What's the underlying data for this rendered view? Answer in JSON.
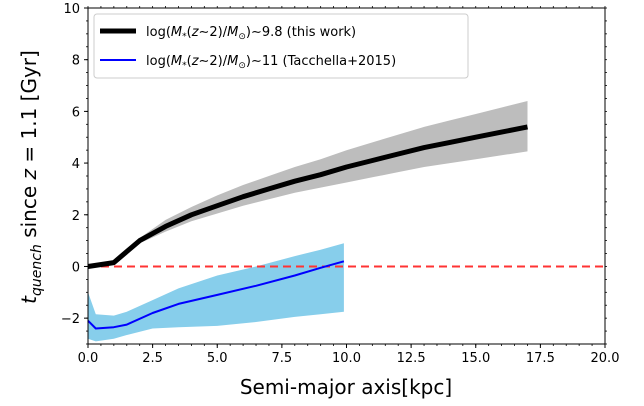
{
  "chart_data": {
    "type": "line",
    "xlabel": "Semi-major axis[kpc]",
    "ylabel": "t_quench since z = 1.1 [Gyr]",
    "ylabel_parts": {
      "t": "t",
      "sub": "quench",
      "rest": " since ",
      "z": "z",
      "tail": " = 1.1 [Gyr]"
    },
    "xlim": [
      0,
      20
    ],
    "ylim": [
      -3,
      10
    ],
    "xticks": [
      0,
      2.5,
      5,
      7.5,
      10,
      12.5,
      15,
      17.5,
      20
    ],
    "xtick_labels": [
      "0.0",
      "2.5",
      "5.0",
      "7.5",
      "10.0",
      "12.5",
      "15.0",
      "17.5",
      "20.0"
    ],
    "yticks": [
      -2,
      0,
      2,
      4,
      6,
      8,
      10
    ],
    "ytick_labels": [
      "−2",
      "0",
      "2",
      "4",
      "6",
      "8",
      "10"
    ],
    "legend_position": "top-left",
    "reference_line": {
      "y": 0,
      "color": "#ff3333",
      "style": "dashed"
    },
    "series": [
      {
        "name": "log(M*(z∼2)/M⊙)∼9.8 (this work)",
        "legend_parts": {
          "pre": "log(",
          "M": "M",
          "star": "*",
          "mid": "(",
          "z": "z",
          "post1": "∼2)/",
          "M2": "M",
          "sun": "⊙",
          "tail": ")∼9.8 (this work)"
        },
        "color": "#000000",
        "band_color": "#bdbdbd",
        "x": [
          0.0,
          1.0,
          2.0,
          3.0,
          4.0,
          5.0,
          6.0,
          7.0,
          8.0,
          9.0,
          10.0,
          11.0,
          12.0,
          13.0,
          14.0,
          15.0,
          16.0,
          17.0
        ],
        "y": [
          0.0,
          0.15,
          1.0,
          1.55,
          2.0,
          2.35,
          2.7,
          3.0,
          3.3,
          3.55,
          3.85,
          4.1,
          4.35,
          4.6,
          4.8,
          5.0,
          5.2,
          5.4
        ],
        "upper": [
          0.05,
          0.2,
          1.1,
          1.8,
          2.3,
          2.75,
          3.15,
          3.5,
          3.85,
          4.15,
          4.5,
          4.8,
          5.1,
          5.4,
          5.65,
          5.9,
          6.15,
          6.4
        ],
        "lower": [
          -0.05,
          0.1,
          0.9,
          1.35,
          1.75,
          2.05,
          2.35,
          2.6,
          2.85,
          3.05,
          3.25,
          3.45,
          3.65,
          3.85,
          4.0,
          4.15,
          4.3,
          4.45
        ]
      },
      {
        "name": "log(M*(z∼2)/M⊙)∼11 (Tacchella+2015)",
        "legend_parts": {
          "pre": "log(",
          "M": "M",
          "star": "*",
          "mid": "(",
          "z": "z",
          "post1": "∼2)/",
          "M2": "M",
          "sun": "⊙",
          "tail": ")∼11 (Tacchella+2015)"
        },
        "color": "#0000ff",
        "band_color": "#87ceeb",
        "x": [
          0.0,
          0.3,
          1.0,
          1.5,
          2.5,
          3.5,
          5.0,
          6.5,
          8.0,
          9.0,
          9.9
        ],
        "y": [
          -2.1,
          -2.4,
          -2.35,
          -2.25,
          -1.8,
          -1.45,
          -1.1,
          -0.75,
          -0.35,
          -0.05,
          0.2
        ],
        "upper": [
          -1.0,
          -1.85,
          -1.9,
          -1.75,
          -1.3,
          -0.85,
          -0.35,
          0.0,
          0.4,
          0.65,
          0.9
        ],
        "lower": [
          -2.8,
          -2.9,
          -2.8,
          -2.65,
          -2.4,
          -2.35,
          -2.3,
          -2.15,
          -1.95,
          -1.85,
          -1.75
        ]
      }
    ]
  }
}
